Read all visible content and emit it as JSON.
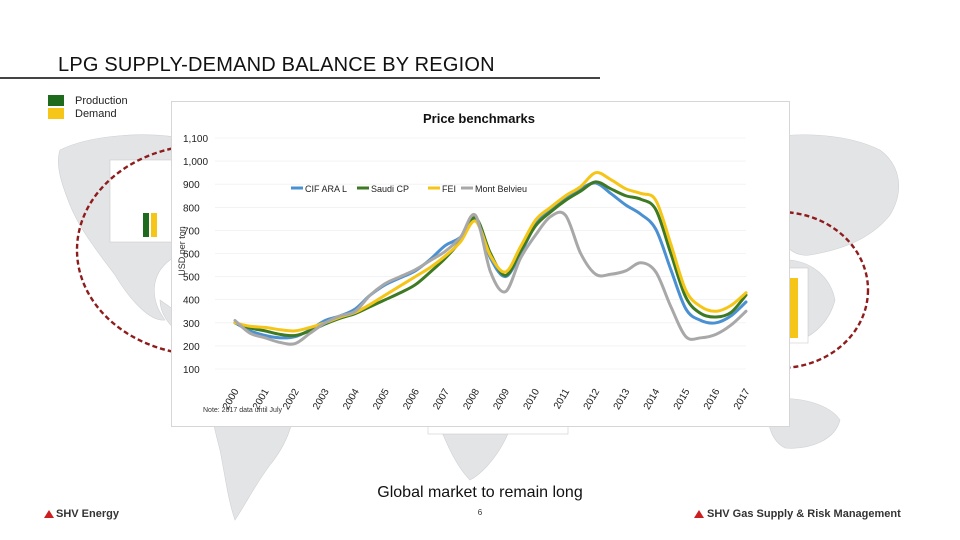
{
  "slide": {
    "title": "LPG SUPPLY-DEMAND BALANCE BY REGION",
    "legend": [
      {
        "label": "Production",
        "color": "#1e6b1e"
      },
      {
        "label": "Demand",
        "color": "#f5c518"
      }
    ],
    "tagline": "Global market to remain long",
    "page_number": "6",
    "footer_left": "SHV Energy",
    "footer_right": "SHV Gas Supply & Risk Management",
    "accent_color": "#cc1f1f"
  },
  "chart_data": {
    "type": "line",
    "title": "Price benchmarks",
    "ylabel": "USD per ton",
    "xlabel": "",
    "note": "Note: 2017 data until July",
    "legend_position": "top-center",
    "ylim": [
      100,
      1100
    ],
    "yticks": [
      "100",
      "200",
      "300",
      "400",
      "500",
      "600",
      "700",
      "800",
      "900",
      "1,000",
      "1,100"
    ],
    "x_labels": [
      "2000",
      "2001",
      "2002",
      "2003",
      "2004",
      "2005",
      "2006",
      "2007",
      "2008",
      "2009",
      "2010",
      "2011",
      "2012",
      "2013",
      "2014",
      "2015",
      "2016",
      "2017"
    ],
    "x": [
      2000,
      2000.5,
      2001,
      2001.5,
      2002,
      2002.5,
      2003,
      2003.5,
      2004,
      2004.5,
      2005,
      2005.5,
      2006,
      2006.5,
      2007,
      2007.5,
      2008,
      2008.5,
      2009,
      2009.5,
      2010,
      2010.5,
      2011,
      2011.5,
      2012,
      2012.5,
      2013,
      2013.5,
      2014,
      2014.5,
      2015,
      2015.5,
      2016,
      2016.5,
      2017
    ],
    "series": [
      {
        "name": "CIF ARA L",
        "color": "#4a90d2",
        "values": [
          300,
          265,
          245,
          235,
          240,
          270,
          310,
          330,
          360,
          420,
          465,
          495,
          525,
          575,
          635,
          670,
          745,
          580,
          500,
          600,
          725,
          790,
          840,
          880,
          905,
          860,
          810,
          770,
          705,
          530,
          360,
          310,
          300,
          330,
          390
        ]
      },
      {
        "name": "Saudi CP",
        "color": "#3d7a23",
        "values": [
          300,
          278,
          265,
          250,
          245,
          265,
          295,
          320,
          340,
          370,
          400,
          430,
          465,
          520,
          580,
          655,
          755,
          600,
          505,
          610,
          720,
          780,
          830,
          870,
          910,
          880,
          850,
          835,
          790,
          600,
          410,
          340,
          325,
          345,
          420
        ]
      },
      {
        "name": "FEI",
        "color": "#f5c518",
        "values": [
          300,
          285,
          280,
          270,
          265,
          280,
          300,
          325,
          345,
          380,
          420,
          460,
          500,
          540,
          590,
          650,
          740,
          590,
          520,
          630,
          745,
          800,
          850,
          890,
          950,
          920,
          880,
          860,
          830,
          640,
          440,
          370,
          350,
          375,
          430
        ]
      },
      {
        "name": "Mont Belvieu",
        "color": "#a8a8a8",
        "values": [
          310,
          255,
          235,
          215,
          210,
          255,
          300,
          330,
          350,
          420,
          470,
          500,
          530,
          570,
          610,
          670,
          765,
          520,
          435,
          580,
          680,
          760,
          765,
          600,
          510,
          510,
          525,
          560,
          520,
          370,
          240,
          235,
          250,
          290,
          350
        ]
      }
    ]
  }
}
